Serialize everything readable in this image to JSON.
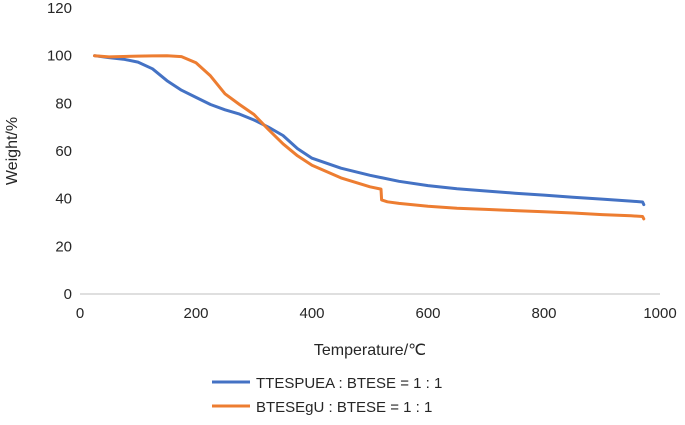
{
  "chart_data": {
    "type": "line",
    "title": "",
    "xlabel": "Temperature/℃",
    "ylabel": "Weight/%",
    "xlim": [
      0,
      1000
    ],
    "ylim": [
      0,
      120
    ],
    "xticks": [
      0,
      200,
      400,
      600,
      800,
      1000
    ],
    "yticks": [
      0,
      20,
      40,
      60,
      80,
      100,
      120
    ],
    "grid": false,
    "legend_position": "bottom",
    "series": [
      {
        "name": "TTESPUEA : BTESE = 1 : 1",
        "color": "#4472C4",
        "x": [
          25,
          50,
          75,
          100,
          125,
          150,
          175,
          200,
          225,
          250,
          275,
          300,
          325,
          350,
          375,
          400,
          450,
          500,
          550,
          600,
          650,
          700,
          750,
          800,
          850,
          900,
          950,
          970,
          972
        ],
        "y": [
          100,
          99.2,
          98.5,
          97.3,
          94.5,
          89.5,
          85.5,
          82.5,
          79.5,
          77.3,
          75.5,
          73.0,
          70.0,
          66.5,
          61.0,
          57.0,
          52.8,
          49.8,
          47.3,
          45.5,
          44.2,
          43.2,
          42.3,
          41.5,
          40.6,
          39.8,
          39.0,
          38.6,
          37.5
        ]
      },
      {
        "name": "BTESEgU : BTESE = 1 : 1",
        "color": "#ED7D31",
        "x": [
          25,
          50,
          100,
          125,
          150,
          175,
          200,
          225,
          250,
          275,
          300,
          325,
          350,
          375,
          400,
          450,
          500,
          519,
          520,
          530,
          550,
          600,
          650,
          700,
          750,
          800,
          850,
          900,
          950,
          970,
          972
        ],
        "y": [
          100,
          99.5,
          99.8,
          99.9,
          100,
          99.6,
          97.0,
          91.5,
          84.0,
          79.5,
          75.3,
          69.0,
          63.0,
          58.0,
          54.0,
          48.7,
          45.0,
          44.0,
          39.5,
          38.7,
          38.0,
          36.8,
          36.0,
          35.5,
          35.0,
          34.5,
          34.0,
          33.3,
          32.8,
          32.5,
          31.5
        ]
      }
    ]
  }
}
